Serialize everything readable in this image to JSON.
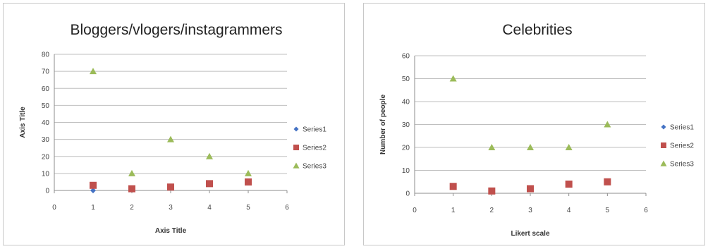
{
  "chart_data": [
    {
      "type": "scatter",
      "title": "Bloggers/vlogers/instagrammers",
      "xlabel": "Axis Title",
      "ylabel": "Axis Title",
      "xlim": [
        0,
        6
      ],
      "ylim": [
        0,
        80
      ],
      "xticks": [
        "0",
        "1",
        "2",
        "3",
        "4",
        "5",
        "6"
      ],
      "yticks": [
        "0",
        "10",
        "20",
        "30",
        "40",
        "50",
        "60",
        "70",
        "80"
      ],
      "grid": true,
      "legend_position": "right",
      "series": [
        {
          "name": "Series1",
          "marker": "diamond",
          "color": "#4472c4",
          "points": [
            [
              1,
              0
            ]
          ]
        },
        {
          "name": "Series2",
          "marker": "square",
          "color": "#c0504d",
          "points": [
            [
              1,
              3
            ],
            [
              2,
              1
            ],
            [
              3,
              2
            ],
            [
              4,
              4
            ],
            [
              5,
              5
            ]
          ]
        },
        {
          "name": "Series3",
          "marker": "triangle",
          "color": "#9bbb59",
          "points": [
            [
              1,
              70
            ],
            [
              2,
              10
            ],
            [
              3,
              30
            ],
            [
              4,
              20
            ],
            [
              5,
              10
            ]
          ]
        }
      ]
    },
    {
      "type": "scatter",
      "title": "Celebrities",
      "xlabel": "Likert scale",
      "ylabel": "Number of people",
      "xlim": [
        0,
        6
      ],
      "ylim": [
        0,
        60
      ],
      "xticks": [
        "0",
        "1",
        "2",
        "3",
        "4",
        "5",
        "6"
      ],
      "yticks": [
        "0",
        "10",
        "20",
        "30",
        "40",
        "50",
        "60"
      ],
      "grid": true,
      "legend_position": "right",
      "series": [
        {
          "name": "Series1",
          "marker": "diamond",
          "color": "#4472c4",
          "points": []
        },
        {
          "name": "Series2",
          "marker": "square",
          "color": "#c0504d",
          "points": [
            [
              1,
              3
            ],
            [
              2,
              1
            ],
            [
              3,
              2
            ],
            [
              4,
              4
            ],
            [
              5,
              5
            ]
          ]
        },
        {
          "name": "Series3",
          "marker": "triangle",
          "color": "#9bbb59",
          "points": [
            [
              1,
              50
            ],
            [
              2,
              20
            ],
            [
              3,
              20
            ],
            [
              4,
              20
            ],
            [
              5,
              30
            ]
          ]
        }
      ]
    }
  ]
}
